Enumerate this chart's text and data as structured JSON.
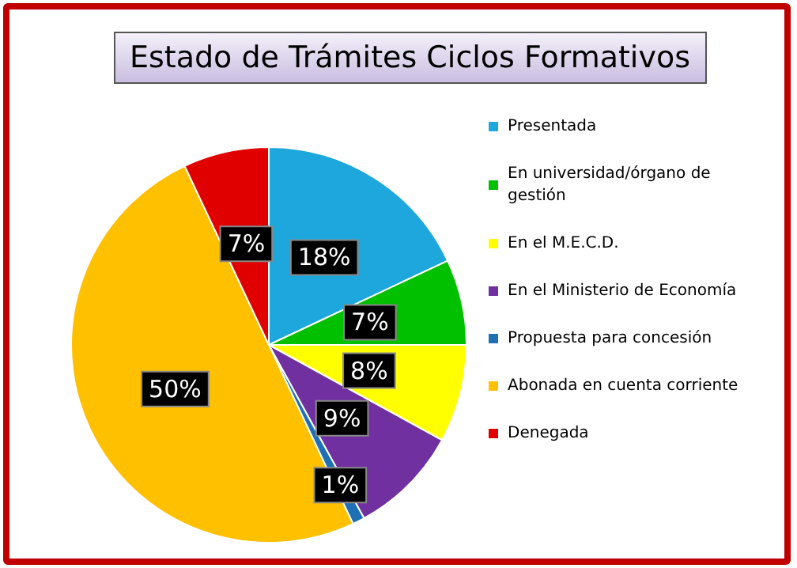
{
  "chart_data": {
    "type": "pie",
    "title": "Estado de Trámites Ciclos Formativos",
    "categories": [
      "Presentada",
      "En universidad/órgano de gestión",
      "En el M.E.C.D.",
      "En el Ministerio de Economía",
      "Propuesta para concesión",
      "Abonada en cuenta corriente",
      "Denegada"
    ],
    "values": [
      18,
      7,
      8,
      9,
      1,
      50,
      7
    ],
    "colors": [
      "#1ea7dc",
      "#00c000",
      "#ffff00",
      "#7030a0",
      "#1f6fb4",
      "#ffc000",
      "#e00000"
    ],
    "value_labels": [
      "18%",
      "7%",
      "8%",
      "9%",
      "1%",
      "50%",
      "7%"
    ],
    "legend": "right"
  }
}
